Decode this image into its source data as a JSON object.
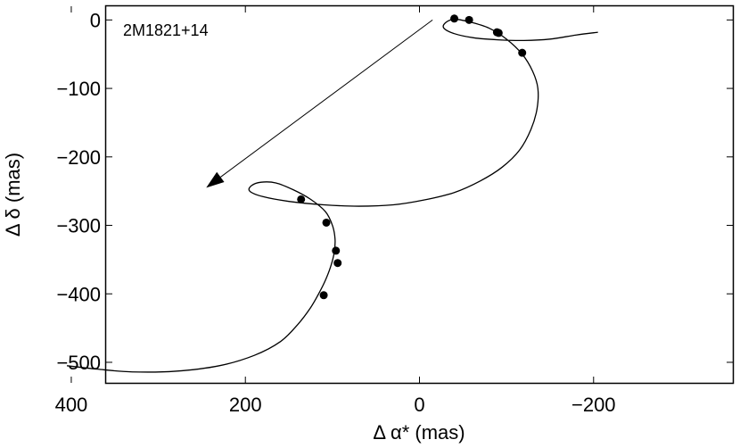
{
  "chart_data": {
    "type": "line",
    "title": "",
    "annotation": "2M1821+14",
    "xlabel": "Δ α* (mas)",
    "ylabel": "Δ δ (mas)",
    "xlim": [
      360,
      -360
    ],
    "ylim": [
      -530,
      20
    ],
    "x_reversed": true,
    "grid": false,
    "x_ticks": [
      400,
      200,
      0,
      -200
    ],
    "x_tick_labels": [
      "400",
      "200",
      "0",
      "−200"
    ],
    "y_ticks": [
      0,
      -100,
      -200,
      -300,
      -400,
      -500
    ],
    "y_tick_labels": [
      "0",
      "−100",
      "−200",
      "−300",
      "−400",
      "−500"
    ],
    "series": [
      {
        "kind": "curve",
        "x": [
          -205,
          -180,
          -150,
          -120,
          -90,
          -62,
          -40,
          -28,
          -30,
          -40,
          -58,
          -80,
          -100,
          -118,
          -130,
          -136,
          -135,
          -128,
          -115,
          -95,
          -70,
          -40,
          -5,
          30,
          70,
          110,
          150,
          180,
          195,
          193,
          182,
          165,
          145,
          125,
          108,
          100,
          97,
          98,
          102,
          108,
          115,
          125,
          140,
          160,
          190,
          230,
          280,
          330,
          370,
          405
        ],
        "y": [
          -18,
          -22,
          -28,
          -30,
          -29,
          -26,
          -20,
          -12,
          -4,
          1,
          -3,
          -12,
          -28,
          -50,
          -75,
          -100,
          -130,
          -160,
          -190,
          -215,
          -235,
          -252,
          -263,
          -270,
          -272,
          -270,
          -265,
          -258,
          -250,
          -242,
          -237,
          -238,
          -248,
          -262,
          -280,
          -300,
          -320,
          -340,
          -360,
          -380,
          -398,
          -420,
          -445,
          -470,
          -490,
          -505,
          -513,
          -514,
          -510,
          -505
        ]
      },
      {
        "kind": "points",
        "x": [
          -40,
          -57,
          -89,
          -91,
          -118,
          136,
          107,
          96,
          94,
          110
        ],
        "y": [
          2,
          0,
          -18,
          -19,
          -48,
          -262,
          -296,
          -337,
          -355,
          -402
        ]
      }
    ],
    "arrow": {
      "from": [
        -15,
        0
      ],
      "to": [
        245,
        -245
      ]
    }
  }
}
